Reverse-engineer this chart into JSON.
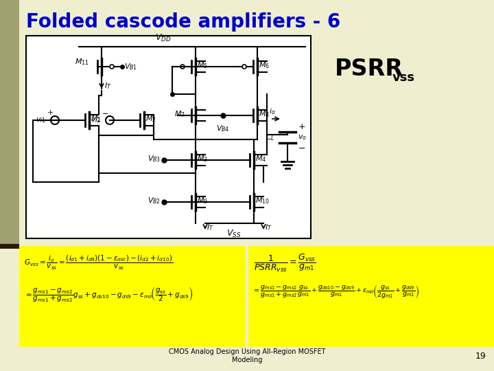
{
  "title": "Folded cascode amplifiers - 6",
  "title_color": "#0000CC",
  "slide_bg": "#EFEFD0",
  "formula_bg": "#FFFF00",
  "footer_text": "CMOS Analog Design Using All-Region MOSFET\nModeling",
  "page_num": "19",
  "accent_bar_color": "#A0A070",
  "dark_stripe_color": "#2A1A0A"
}
